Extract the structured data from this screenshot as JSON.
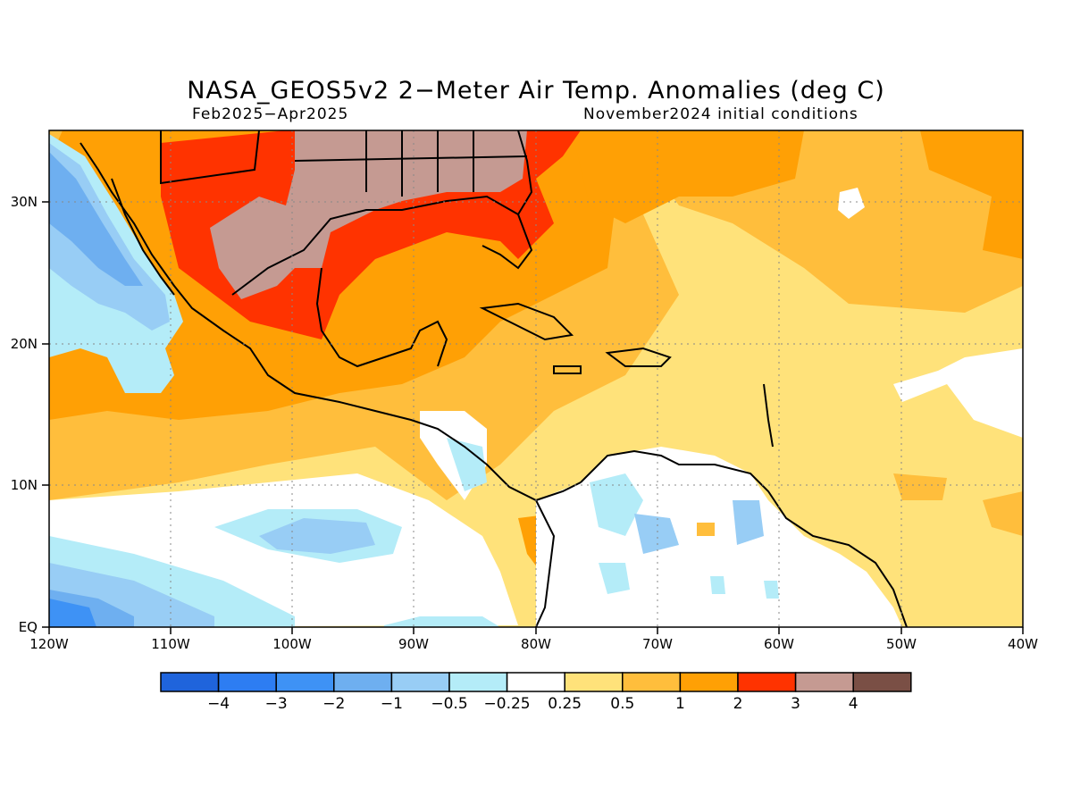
{
  "title": "NASA_GEOS5v2 2−Meter Air Temp. Anomalies (deg C)",
  "period": "Feb2025−Apr2025",
  "initial_conditions": "November2024 initial conditions",
  "x_ticks": [
    "120W",
    "110W",
    "100W",
    "90W",
    "80W",
    "70W",
    "60W",
    "50W",
    "40W"
  ],
  "y_ticks": [
    "EQ",
    "10N",
    "20N",
    "30N"
  ],
  "legend": {
    "colors": [
      "#1f64dc",
      "#2d7df2",
      "#3e92f5",
      "#6eaff0",
      "#98cdf5",
      "#b4ecf8",
      "#ffffff",
      "#ffe27a",
      "#ffbe3c",
      "#ffa005",
      "#ff3300",
      "#c59a92",
      "#7a4f45"
    ],
    "labels": [
      "−4",
      "−3",
      "−2",
      "−1",
      "−0.5",
      "−0.25",
      "0.25",
      "0.5",
      "1",
      "2",
      "3",
      "4"
    ]
  }
}
